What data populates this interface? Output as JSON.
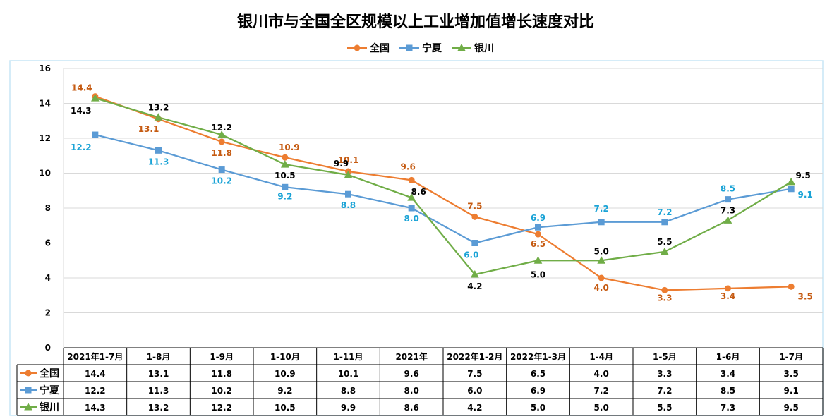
{
  "chart_data": {
    "type": "line",
    "title": "银川市与全国全区规模以上工业增加值增长速度对比",
    "categories": [
      "2021年1-7月",
      "1-8月",
      "1-9月",
      "1-10月",
      "1-11月",
      "2021年",
      "2022年1-2月",
      "2022年1-3月",
      "1-4月",
      "1-5月",
      "1-6月",
      "1-7月"
    ],
    "series": [
      {
        "name": "全国",
        "marker": "circle",
        "color": "#ED7D31",
        "label_color": "#C55A11",
        "values": [
          14.4,
          13.1,
          11.8,
          10.9,
          10.1,
          9.6,
          7.5,
          6.5,
          4.0,
          3.3,
          3.4,
          3.5
        ]
      },
      {
        "name": "宁夏",
        "marker": "square",
        "color": "#5B9BD5",
        "label_color": "#1AA3D6",
        "values": [
          12.2,
          11.3,
          10.2,
          9.2,
          8.8,
          8.0,
          6.0,
          6.9,
          7.2,
          7.2,
          8.5,
          9.1
        ]
      },
      {
        "name": "银川",
        "marker": "triangle",
        "color": "#70AD47",
        "label_color": "#000000",
        "values": [
          14.3,
          13.2,
          12.2,
          10.5,
          9.9,
          8.6,
          4.2,
          5.0,
          5.0,
          5.5,
          7.3,
          9.5
        ]
      }
    ],
    "yticks": [
      "0",
      "2",
      "4",
      "6",
      "8",
      "10",
      "12",
      "14",
      "16"
    ],
    "ylim": [
      0,
      16
    ],
    "xlabel": "",
    "ylabel": "",
    "legend_position": "top",
    "data_table": true,
    "plot_background": "#ffffff",
    "frame_color": "#c7e6f5"
  }
}
